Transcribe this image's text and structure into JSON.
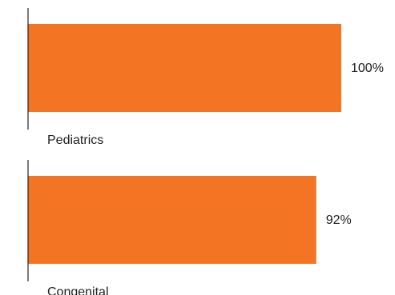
{
  "chart_data": {
    "type": "bar",
    "orientation": "horizontal",
    "categories": [
      "Pediatrics",
      "Congenital"
    ],
    "values": [
      100,
      92
    ],
    "value_labels": [
      "100%",
      "92%"
    ],
    "xlim": [
      0,
      100
    ],
    "unit": "%",
    "title": "",
    "xlabel": "",
    "ylabel": "",
    "grid": false,
    "legend": "none",
    "colors": {
      "bar": "#F37423",
      "axis": "#222222",
      "text": "#222222"
    }
  }
}
